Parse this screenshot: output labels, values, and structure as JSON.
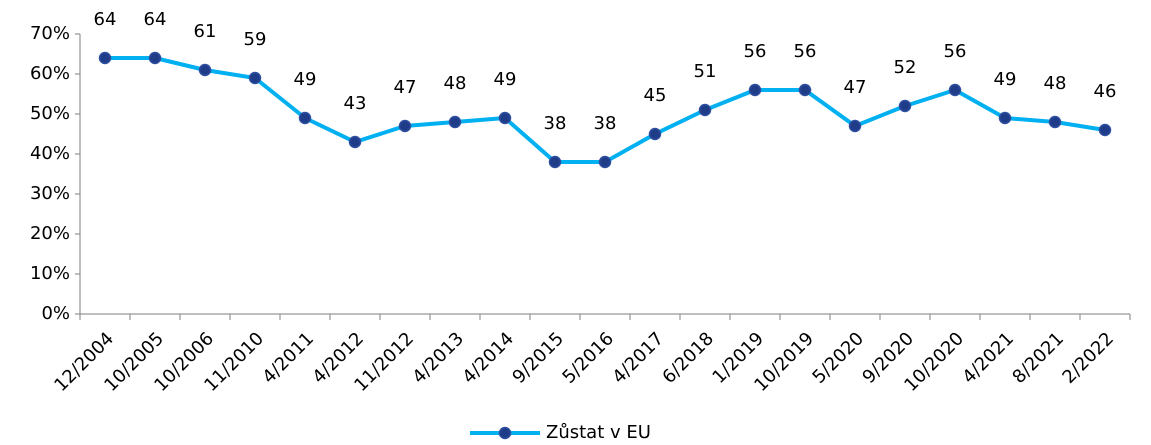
{
  "chart_data": {
    "type": "line",
    "categories": [
      "12/2004",
      "10/2005",
      "10/2006",
      "11/2010",
      "4/2011",
      "4/2012",
      "11/2012",
      "4/2013",
      "4/2014",
      "9/2015",
      "5/2016",
      "4/2017",
      "6/2018",
      "1/2019",
      "10/2019",
      "5/2020",
      "9/2020",
      "10/2020",
      "4/2021",
      "8/2021",
      "2/2022"
    ],
    "series": [
      {
        "name": "Zůstat v EU",
        "color": "#00b0f0",
        "marker_color": "#1f3c88",
        "values": [
          64,
          64,
          61,
          59,
          49,
          43,
          47,
          48,
          49,
          38,
          38,
          45,
          51,
          56,
          56,
          47,
          52,
          56,
          49,
          48,
          46
        ]
      }
    ],
    "ylim": [
      0,
      70
    ],
    "yticks": [
      {
        "value": 0,
        "label": "0%"
      },
      {
        "value": 10,
        "label": "10%"
      },
      {
        "value": 20,
        "label": "20%"
      },
      {
        "value": 30,
        "label": "30%"
      },
      {
        "value": 40,
        "label": "40%"
      },
      {
        "value": 50,
        "label": "50%"
      },
      {
        "value": 60,
        "label": "60%"
      },
      {
        "value": 70,
        "label": "70%"
      }
    ],
    "grid": false,
    "legend": "bottom"
  }
}
